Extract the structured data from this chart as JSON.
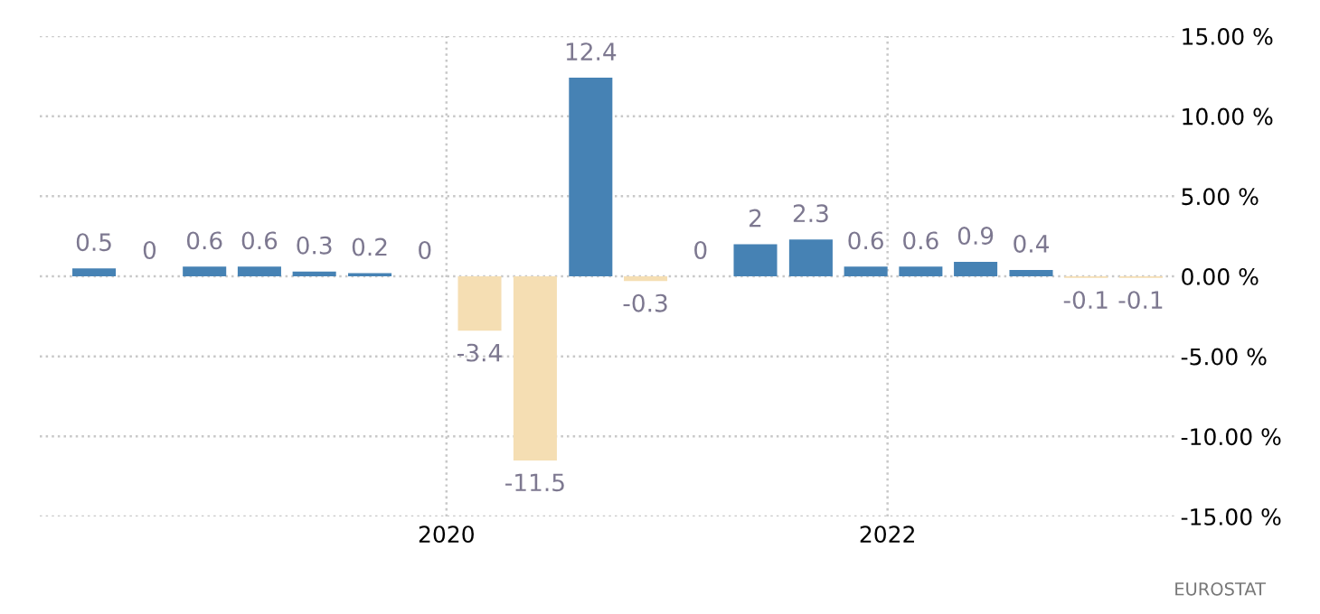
{
  "chart_data": {
    "type": "bar",
    "x": [
      "2018-05-27",
      "2018-08-27",
      "2018-11-26",
      "2019-02-25",
      "2019-05-27",
      "2019-08-27",
      "2019-11-26",
      "2020-02-25",
      "2020-05-27",
      "2020-08-27",
      "2020-11-26",
      "2021-02-25",
      "2021-05-27",
      "2021-08-27",
      "2021-11-26",
      "2022-02-25",
      "2022-05-27",
      "2022-08-27",
      "2022-11-26",
      "2023-02-25"
    ],
    "values": [
      0.5,
      0,
      0.6,
      0.6,
      0.3,
      0.2,
      0,
      -3.4,
      -11.5,
      12.4,
      -0.3,
      0,
      2,
      2.3,
      0.6,
      0.6,
      0.9,
      0.4,
      -0.1,
      -0.1
    ],
    "colors": [
      "#4682b4",
      "#4682b4",
      "#4682b4",
      "#4682b4",
      "#4682b4",
      "#4682b4",
      "#4682b4",
      "#f5deb3",
      "#f5deb3",
      "#4682b4",
      "#f5deb3",
      "#4682b4",
      "#4682b4",
      "#4682b4",
      "#4682b4",
      "#4682b4",
      "#4682b4",
      "#4682b4",
      "#f5deb3",
      "#f5deb3"
    ],
    "data_labels": true,
    "xlim": [
      "2018-02-26",
      "2023-04-23"
    ],
    "xticks": [
      {
        "value": "2020-01-01",
        "label": "2020"
      },
      {
        "value": "2022-01-01",
        "label": "2022"
      }
    ],
    "ylim": [
      -15,
      15
    ],
    "yticks": [
      {
        "value": -15,
        "label": "-15.00 %"
      },
      {
        "value": -10,
        "label": "-10.00 %"
      },
      {
        "value": -5,
        "label": "-5.00 %"
      },
      {
        "value": 0,
        "label": "0.00 %"
      },
      {
        "value": 5,
        "label": "5.00 %"
      },
      {
        "value": 10,
        "label": "10.00 %"
      },
      {
        "value": 15,
        "label": "15.00 %"
      }
    ],
    "grid": true,
    "legend": false,
    "annotations": [
      "EUROSTAT"
    ]
  }
}
